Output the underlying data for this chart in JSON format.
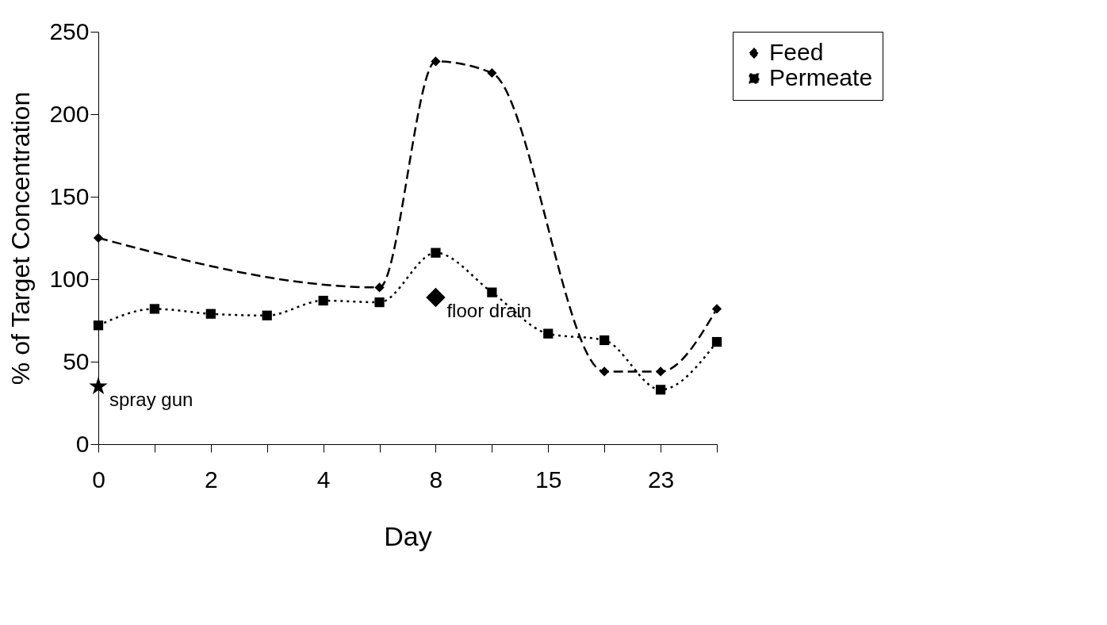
{
  "chart_data": {
    "type": "line",
    "xlabel": "Day",
    "ylabel": "% of Target Concentration",
    "categories": [
      "0",
      null,
      "2",
      null,
      "4",
      null,
      "8",
      null,
      "15",
      null,
      "23",
      null
    ],
    "ylim": [
      0,
      250
    ],
    "yticks": [
      0,
      50,
      100,
      150,
      200,
      250
    ],
    "grid": false,
    "legend": "right",
    "series": [
      {
        "name": "Feed",
        "color": "#000000",
        "marker": "diamond",
        "line_style": "dashed",
        "values": [
          125,
          null,
          null,
          null,
          null,
          95,
          232,
          225,
          null,
          44,
          44,
          82
        ]
      },
      {
        "name": "Permeate",
        "color": "#000000",
        "marker": "square",
        "line_style": "dotted",
        "values": [
          72,
          82,
          79,
          78,
          87,
          86,
          116,
          92,
          67,
          63,
          33,
          62
        ]
      },
      {
        "type": "scatter",
        "color": "#000000",
        "marker": "star",
        "values": [
          35,
          null,
          null,
          null,
          null,
          null,
          null,
          null,
          null,
          null,
          null,
          null
        ]
      },
      {
        "type": "scatter",
        "color": "#000000",
        "marker": "diamond",
        "values": [
          null,
          null,
          null,
          null,
          null,
          null,
          89,
          null,
          null,
          null,
          null,
          null
        ]
      }
    ],
    "annotations": [
      {
        "text": "spray gun",
        "x": "0",
        "y": 35
      },
      {
        "text": "floor drain",
        "x": "8",
        "y": 89
      }
    ]
  }
}
